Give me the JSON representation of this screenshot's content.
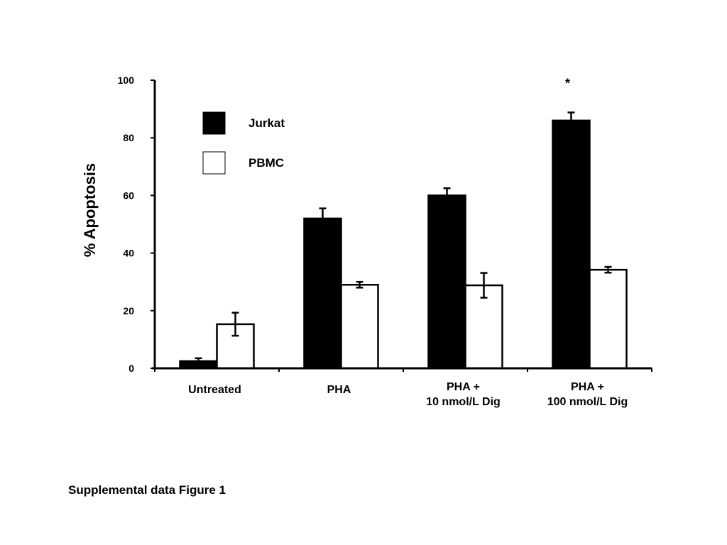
{
  "chart_data": {
    "type": "bar",
    "ylabel": "% Apoptosis",
    "ylim": [
      0,
      100
    ],
    "yticks": [
      0,
      20,
      40,
      60,
      80,
      100
    ],
    "categories": [
      [
        "Untreated"
      ],
      [
        "PHA"
      ],
      [
        "PHA +",
        "10 nmol/L Dig"
      ],
      [
        "PHA +",
        "100 nmol/L Dig"
      ]
    ],
    "series": [
      {
        "name": "Jurkat",
        "fill": "#000000",
        "values": [
          2.5,
          52,
          60,
          86
        ],
        "errors": [
          1,
          3.5,
          2.5,
          2.8
        ]
      },
      {
        "name": "PBMC",
        "fill": "#ffffff",
        "values": [
          15.3,
          29,
          28.8,
          34.2
        ],
        "errors": [
          4,
          1,
          4.3,
          1
        ]
      }
    ],
    "annotations": [
      {
        "text": "*",
        "category_index": 3,
        "series_index": 0
      }
    ],
    "legend_position": "top-left",
    "grid": false
  },
  "caption": "Supplemental data Figure 1"
}
